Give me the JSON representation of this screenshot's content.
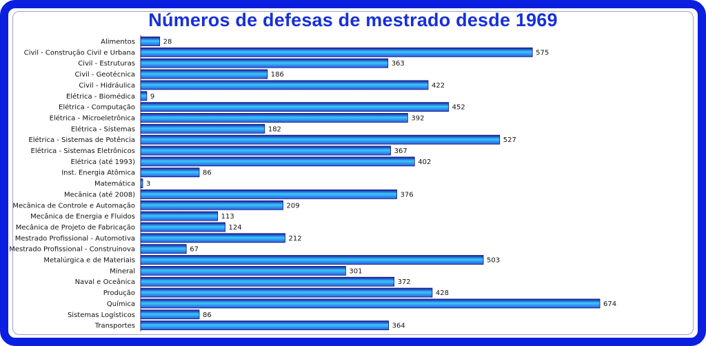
{
  "chart_data": {
    "type": "bar",
    "orientation": "horizontal",
    "title": "Números de defesas de mestrado desde 1969",
    "xlabel": "",
    "ylabel": "",
    "xlim": [
      0,
      700
    ],
    "grid": false,
    "colors": {
      "bar_dark": "#1a1aa0",
      "bar_light": "#38c8ff",
      "border": "#0a1fe0",
      "title": "#1730d8"
    },
    "categories": [
      "Alimentos",
      "Civil - Construção Civil e Urbana",
      "Civil - Estruturas",
      "Civil - Geotécnica",
      "Civil - Hidráulica",
      "Elétrica - Biomédica",
      "Elétrica - Computação",
      "Elétrica - Microeletrônica",
      "Elétrica - Sistemas",
      "Elétrica - Sistemas de Potência",
      "Elétrica - Sistemas Eletrônicos",
      "Elétrica (até 1993)",
      "Inst. Energia Atômica",
      "Matemática",
      "Mecânica (até 2008)",
      "Mecânica de Controle e Automação",
      "Mecânica de Energia e Fluidos",
      "Mecânica de Projeto de Fabricação",
      "Mestrado Profissional - Automotiva",
      "Mestrado Profissional - Construinova",
      "Metalúrgica e de Materiais",
      "Mineral",
      "Naval e Oceânica",
      "Produção",
      "Química",
      "Sistemas Logísticos",
      "Transportes"
    ],
    "values": [
      28,
      575,
      363,
      186,
      422,
      9,
      452,
      392,
      182,
      527,
      367,
      402,
      86,
      3,
      376,
      209,
      113,
      124,
      212,
      67,
      503,
      301,
      372,
      428,
      674,
      86,
      364
    ]
  }
}
